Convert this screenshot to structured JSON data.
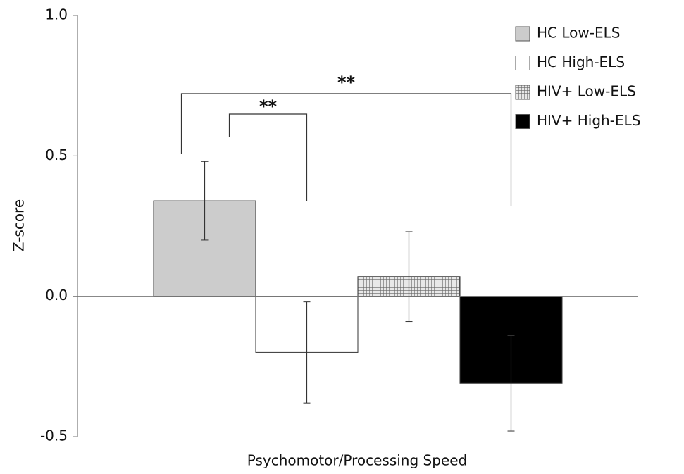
{
  "chart_data": {
    "type": "bar",
    "ylabel": "Z-score",
    "categories": [
      "Psychomotor/Processing Speed"
    ],
    "series": [
      {
        "name": "HC Low-ELS",
        "color": "#cccccc",
        "values": [
          0.34
        ],
        "errors": [
          0.14
        ]
      },
      {
        "name": "HC High-ELS",
        "color": "#ffffff",
        "values": [
          -0.2
        ],
        "errors": [
          0.18
        ]
      },
      {
        "name": "HIV+ Low-ELS",
        "color": "#999999",
        "pattern": "hatch",
        "values": [
          0.07
        ],
        "errors": [
          0.16
        ]
      },
      {
        "name": "HIV+ High-ELS",
        "color": "#000000",
        "values": [
          -0.31
        ],
        "errors": [
          0.17
        ]
      }
    ],
    "annotations": [
      {
        "text": "**",
        "from": "HC Low-ELS",
        "to": "HC High-ELS"
      },
      {
        "text": "**",
        "from": "HC Low-ELS",
        "to": "HIV+ High-ELS"
      }
    ],
    "ylim": [
      -0.5,
      1.0
    ],
    "yticks": [
      {
        "value": -0.5,
        "label": "-0.5"
      },
      {
        "value": 0,
        "label": "0.0"
      },
      {
        "value": 0.5,
        "label": "0.5"
      },
      {
        "value": 1,
        "label": "1.0"
      }
    ],
    "legend": "upper right"
  }
}
